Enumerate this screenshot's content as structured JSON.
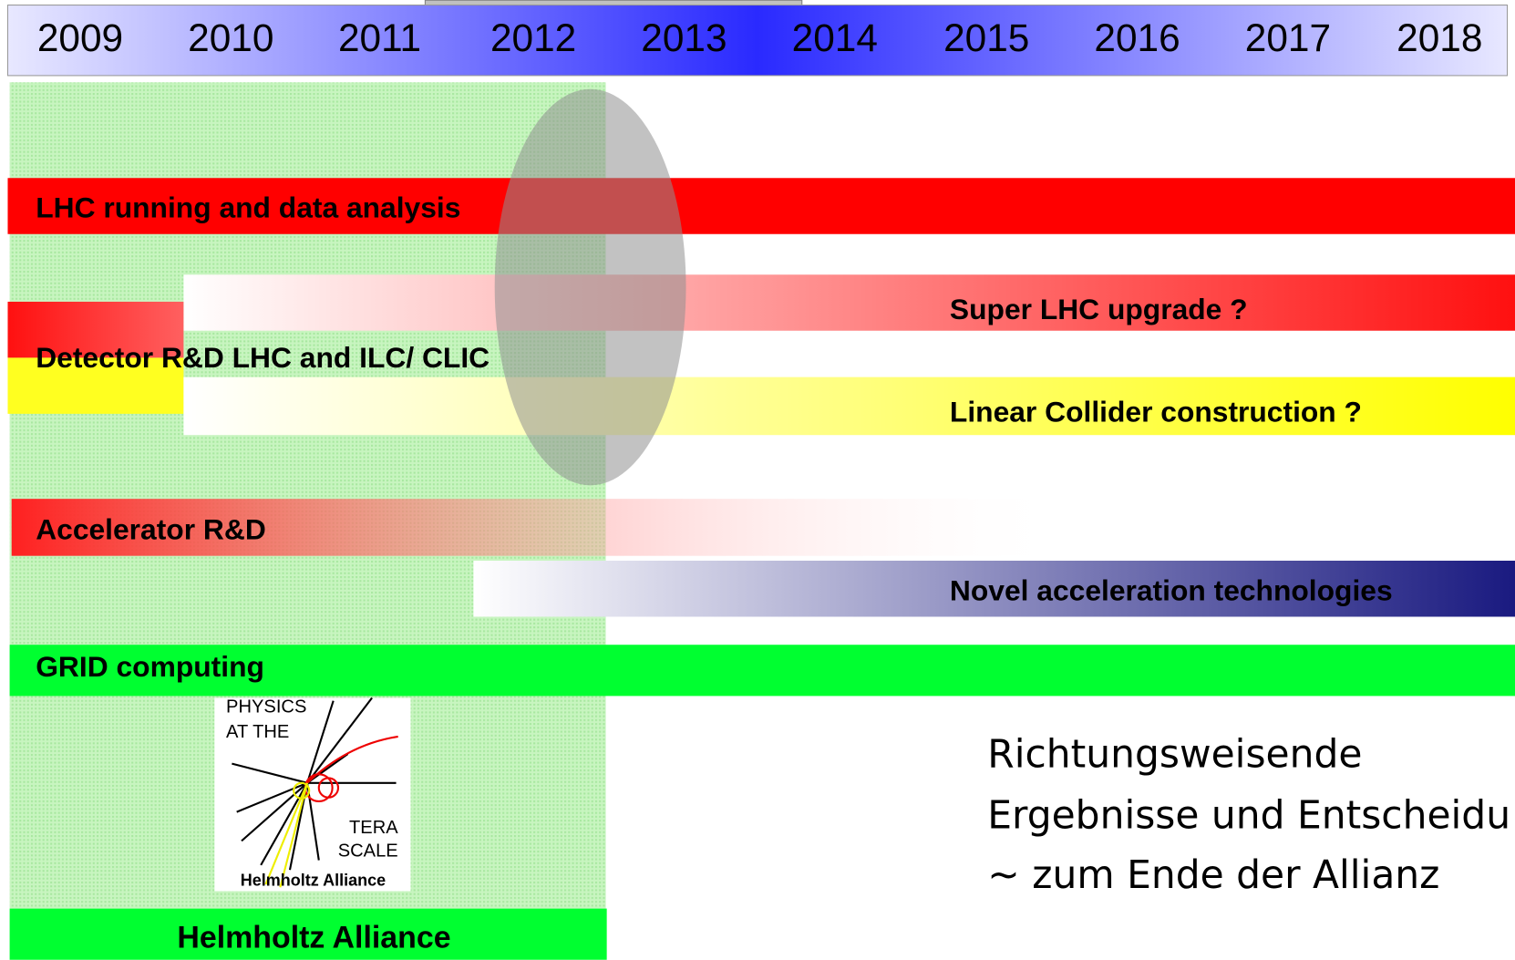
{
  "timeline": {
    "years": [
      "2009",
      "2010",
      "2011",
      "2012",
      "2013",
      "2014",
      "2015",
      "2016",
      "2017",
      "2018"
    ]
  },
  "bars": [
    {
      "label": "LHC running and data analysis"
    },
    {
      "label": "Super LHC upgrade ?"
    },
    {
      "label": "Detector R&D LHC and ILC/ CLIC"
    },
    {
      "label": "Linear Collider construction ?"
    },
    {
      "label": "Accelerator R&D"
    },
    {
      "label": "Novel acceleration technologies"
    },
    {
      "label": "GRID computing"
    }
  ],
  "logo": {
    "lines": [
      "PHYSICS",
      "AT THE",
      "TERA",
      "SCALE",
      "Helmholtz Alliance"
    ]
  },
  "note": {
    "lines": [
      "Richtungsweisende",
      "Ergebnisse und Entscheidu",
      "~ zum Ende der Allianz"
    ]
  },
  "footer": "Helmholtz Alliance"
}
